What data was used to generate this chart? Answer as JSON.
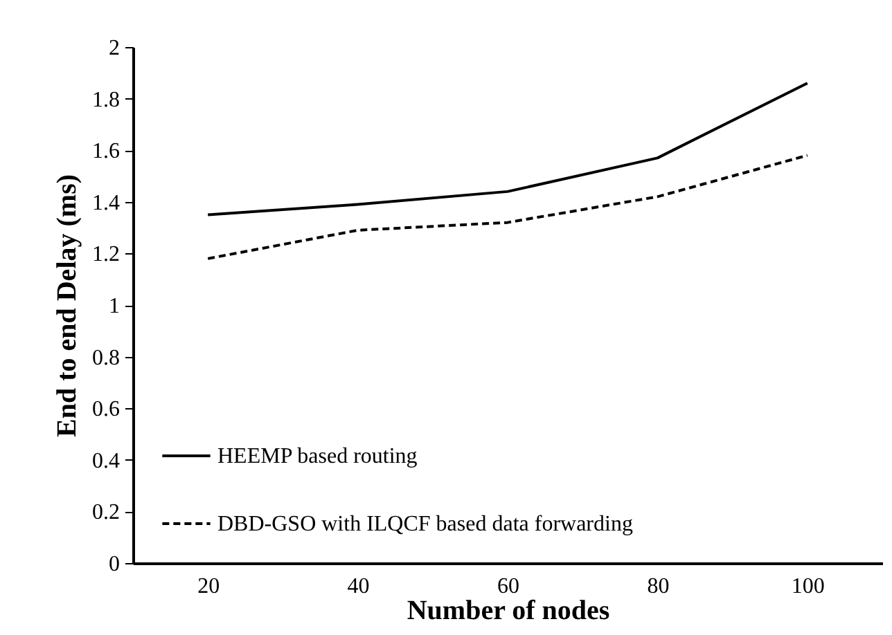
{
  "chart_data": {
    "type": "line",
    "xlabel": "Number of nodes",
    "ylabel": "End to end Delay (ms)",
    "categories": [
      "20",
      "40",
      "60",
      "80",
      "100"
    ],
    "series": [
      {
        "name": "HEEMP based routing",
        "color": "#000000",
        "line_style": "solid",
        "values": [
          1.35,
          1.39,
          1.44,
          1.57,
          1.86
        ]
      },
      {
        "name": "DBD-GSO with ILQCF based data forwarding",
        "color": "#000000",
        "line_style": "dashed",
        "values": [
          1.18,
          1.29,
          1.32,
          1.42,
          1.58
        ]
      }
    ],
    "ylim": [
      0,
      2
    ],
    "yticks": [
      0,
      0.2,
      0.4,
      0.6,
      0.8,
      1,
      1.2,
      1.4,
      1.6,
      1.8,
      2
    ],
    "grid": false,
    "legend": "bottom left"
  }
}
